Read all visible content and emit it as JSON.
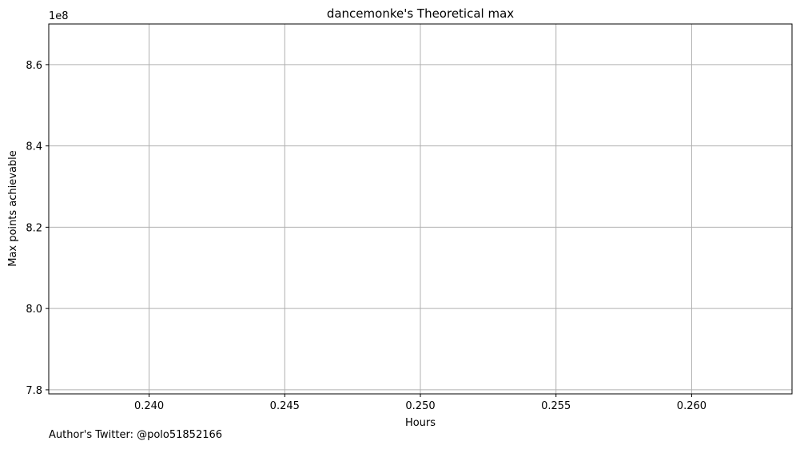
{
  "chart_data": {
    "type": "line",
    "title": "dancemonke's Theoretical max",
    "xlabel": "Hours",
    "ylabel": "Max points achievable",
    "offset_text": "1e8",
    "xlim": [
      0.2363,
      0.2637
    ],
    "ylim": [
      779000000,
      870000000
    ],
    "x_ticks": [
      0.24,
      0.245,
      0.25,
      0.255,
      0.26
    ],
    "x_tick_labels": [
      "0.240",
      "0.245",
      "0.250",
      "0.255",
      "0.260"
    ],
    "y_ticks": [
      780000000,
      800000000,
      820000000,
      840000000,
      860000000
    ],
    "y_tick_labels": [
      "7.8",
      "8.0",
      "8.2",
      "8.4",
      "8.6"
    ],
    "grid": true,
    "series": [
      {
        "x": [],
        "y": []
      }
    ],
    "colors": {
      "grid": "#b0b0b0",
      "axes": "#000000"
    }
  },
  "footer": {
    "author": "Author's Twitter: @polo51852166"
  }
}
